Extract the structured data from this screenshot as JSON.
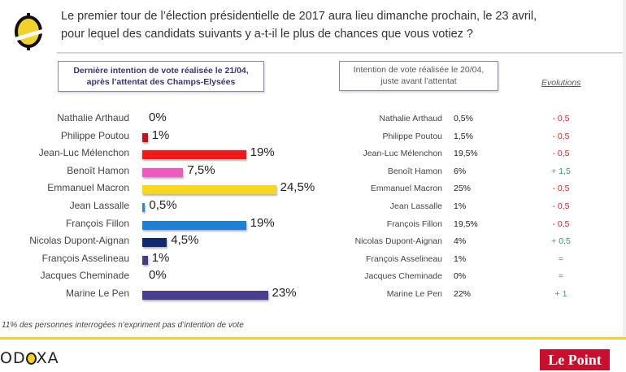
{
  "header": {
    "question_line1": "Le premier tour de l’élection présidentielle de 2017 aura lieu dimanche prochain, le 23 avril,",
    "question_line2": "pour lequel des candidats suivants y a-t-il le plus de chances que vous votiez ?"
  },
  "boxes": {
    "left_line1": "Dernière intention de vote réalisée le 21/04,",
    "left_line2": "après l’attentat des Champs-Elysées",
    "right_line1": "Intention de vote réalisée le 20/04,",
    "right_line2": "juste avant l’attentat",
    "evolutions_label": "Evolutions"
  },
  "chart_data": {
    "type": "bar",
    "orientation": "horizontal",
    "title": "Dernière intention de vote réalisée le 21/04, après l’attentat des Champs-Elysées",
    "xlabel": "",
    "ylabel": "",
    "categories": [
      "Nathalie Arthaud",
      "Philippe Poutou",
      "Jean-Luc Mélenchon",
      "Benoît Hamon",
      "Emmanuel Macron",
      "Jean Lassalle",
      "François Fillon",
      "Nicolas Dupont-Aignan",
      "François Asselineau",
      "Jacques Cheminade",
      "Marine Le Pen"
    ],
    "values": [
      0,
      1,
      19,
      7.5,
      24.5,
      0.5,
      19,
      4.5,
      1,
      0,
      23
    ],
    "value_labels": [
      "0%",
      "1%",
      "19%",
      "7,5%",
      "24,5%",
      "0,5%",
      "19%",
      "4,5%",
      "1%",
      "0%",
      "23%"
    ],
    "colors": [
      "#b00000",
      "#c0141c",
      "#f01818",
      "#f05ac0",
      "#f8d81c",
      "#2a8ad8",
      "#1f7ed6",
      "#0f2a6e",
      "#463c8a",
      "#463c8a",
      "#4a3e8e"
    ],
    "xlim": [
      0,
      25
    ],
    "grid": false,
    "legend": "none"
  },
  "previous_poll": {
    "title": "Intention de vote réalisée le 20/04, juste avant l’attentat",
    "rows": [
      {
        "name": "Nathalie Arthaud",
        "value": "0,5%",
        "evolution": "- 0,5",
        "trend": "down"
      },
      {
        "name": "Philippe Poutou",
        "value": "1,5%",
        "evolution": "- 0,5",
        "trend": "down"
      },
      {
        "name": "Jean-Luc Mélenchon",
        "value": "19,5%",
        "evolution": "- 0,5",
        "trend": "down"
      },
      {
        "name": "Benoît Hamon",
        "value": "6%",
        "evolution": "+ 1,5",
        "trend": "up"
      },
      {
        "name": "Emmanuel Macron",
        "value": "25%",
        "evolution": "- 0,5",
        "trend": "down"
      },
      {
        "name": "Jean Lassalle",
        "value": "1%",
        "evolution": "- 0,5",
        "trend": "down"
      },
      {
        "name": "François Fillon",
        "value": "19,5%",
        "evolution": "- 0,5",
        "trend": "down"
      },
      {
        "name": "Nicolas Dupont-Aignan",
        "value": "4%",
        "evolution": "+ 0,5",
        "trend": "up"
      },
      {
        "name": "François Asselineau",
        "value": "1%",
        "evolution": "=",
        "trend": "same"
      },
      {
        "name": "Jacques Cheminade",
        "value": "0%",
        "evolution": "=",
        "trend": "same"
      },
      {
        "name": "Marine Le Pen",
        "value": "22%",
        "evolution": "+ 1",
        "trend": "up"
      }
    ],
    "trend_colors": {
      "down": "#e0202a",
      "up": "#3a9a6a",
      "same": "#777777"
    }
  },
  "footer": {
    "footnote": "11% des personnes interrogées n’expriment pas d’intention de vote",
    "odoxa_prefix": "OD",
    "odoxa_suffix": "XA",
    "lepoint": "Le Point"
  },
  "colors": {
    "accent_yellow": "#f2ce3a",
    "lepoint_red": "#c8102e",
    "box_title": "#3b3475"
  }
}
